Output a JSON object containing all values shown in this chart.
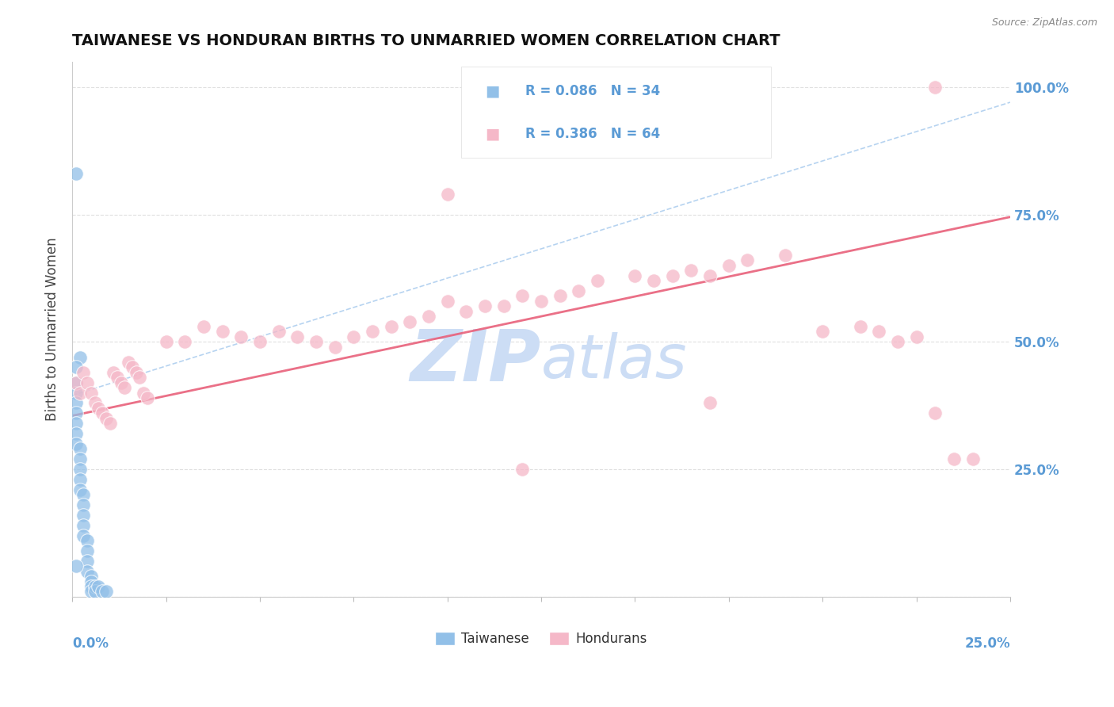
{
  "title": "TAIWANESE VS HONDURAN BIRTHS TO UNMARRIED WOMEN CORRELATION CHART",
  "source": "Source: ZipAtlas.com",
  "ylabel": "Births to Unmarried Women",
  "yticks": [
    0.0,
    0.25,
    0.5,
    0.75,
    1.0
  ],
  "ytick_labels": [
    "",
    "25.0%",
    "50.0%",
    "75.0%",
    "100.0%"
  ],
  "xmin": 0.0,
  "xmax": 0.25,
  "ymin": 0.0,
  "ymax": 1.05,
  "taiwanese_R": 0.086,
  "taiwanese_N": 34,
  "honduran_R": 0.386,
  "honduran_N": 64,
  "taiwanese_color": "#92c0e8",
  "honduran_color": "#f5b8c8",
  "taiwanese_line_color": "#aaccee",
  "honduran_line_color": "#e8607a",
  "watermark_color": "#ccddf5",
  "background_color": "#ffffff",
  "grid_color": "#e0e0e0",
  "tw_x": [
    0.001,
    0.001,
    0.001,
    0.001,
    0.001,
    0.001,
    0.001,
    0.002,
    0.002,
    0.002,
    0.002,
    0.002,
    0.003,
    0.003,
    0.003,
    0.003,
    0.003,
    0.004,
    0.004,
    0.004,
    0.004,
    0.005,
    0.005,
    0.005,
    0.005,
    0.006,
    0.006,
    0.007,
    0.008,
    0.009,
    0.001,
    0.002,
    0.001,
    0.001
  ],
  "tw_y": [
    0.42,
    0.4,
    0.38,
    0.36,
    0.34,
    0.32,
    0.3,
    0.29,
    0.27,
    0.25,
    0.23,
    0.21,
    0.2,
    0.18,
    0.16,
    0.14,
    0.12,
    0.11,
    0.09,
    0.07,
    0.05,
    0.04,
    0.03,
    0.02,
    0.01,
    0.02,
    0.01,
    0.02,
    0.01,
    0.01,
    0.83,
    0.47,
    0.45,
    0.06
  ],
  "hn_x": [
    0.001,
    0.002,
    0.003,
    0.004,
    0.005,
    0.006,
    0.007,
    0.008,
    0.009,
    0.01,
    0.011,
    0.012,
    0.013,
    0.014,
    0.015,
    0.016,
    0.017,
    0.018,
    0.019,
    0.02,
    0.025,
    0.03,
    0.035,
    0.04,
    0.045,
    0.05,
    0.055,
    0.06,
    0.065,
    0.07,
    0.075,
    0.08,
    0.085,
    0.09,
    0.095,
    0.1,
    0.105,
    0.11,
    0.115,
    0.12,
    0.125,
    0.13,
    0.135,
    0.14,
    0.15,
    0.155,
    0.16,
    0.165,
    0.17,
    0.175,
    0.18,
    0.19,
    0.2,
    0.21,
    0.215,
    0.22,
    0.225,
    0.23,
    0.235,
    0.24,
    0.1,
    0.12,
    0.17,
    0.23
  ],
  "hn_y": [
    0.42,
    0.4,
    0.44,
    0.42,
    0.4,
    0.38,
    0.37,
    0.36,
    0.35,
    0.34,
    0.44,
    0.43,
    0.42,
    0.41,
    0.46,
    0.45,
    0.44,
    0.43,
    0.4,
    0.39,
    0.5,
    0.5,
    0.53,
    0.52,
    0.51,
    0.5,
    0.52,
    0.51,
    0.5,
    0.49,
    0.51,
    0.52,
    0.53,
    0.54,
    0.55,
    0.58,
    0.56,
    0.57,
    0.57,
    0.59,
    0.58,
    0.59,
    0.6,
    0.62,
    0.63,
    0.62,
    0.63,
    0.64,
    0.63,
    0.65,
    0.66,
    0.67,
    0.52,
    0.53,
    0.52,
    0.5,
    0.51,
    0.36,
    0.27,
    0.27,
    0.79,
    0.25,
    0.38,
    1.0
  ],
  "tw_line_x": [
    0.0,
    0.25
  ],
  "tw_line_y": [
    0.395,
    0.97
  ],
  "hn_line_x": [
    0.0,
    0.25
  ],
  "hn_line_y": [
    0.355,
    0.745
  ]
}
